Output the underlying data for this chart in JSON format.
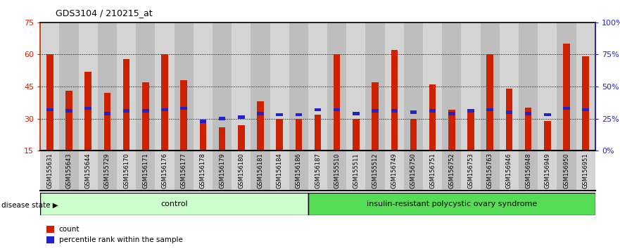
{
  "title": "GDS3104 / 210215_at",
  "samples": [
    "GSM155631",
    "GSM155643",
    "GSM155644",
    "GSM155729",
    "GSM156170",
    "GSM156171",
    "GSM156176",
    "GSM156177",
    "GSM156178",
    "GSM156179",
    "GSM156180",
    "GSM156181",
    "GSM156184",
    "GSM156186",
    "GSM156187",
    "GSM155510",
    "GSM155511",
    "GSM155512",
    "GSM156749",
    "GSM156750",
    "GSM156751",
    "GSM156752",
    "GSM156753",
    "GSM156763",
    "GSM156946",
    "GSM156948",
    "GSM156949",
    "GSM156950",
    "GSM156951"
  ],
  "count_values": [
    60,
    43,
    52,
    42,
    58,
    47,
    60,
    48,
    28,
    26,
    27,
    38,
    30,
    30,
    32,
    60,
    30,
    47,
    62,
    30,
    46,
    34,
    33,
    60,
    44,
    35,
    29,
    65,
    59
  ],
  "percentile_values": [
    32,
    31,
    33,
    29,
    31,
    31,
    32,
    33,
    23,
    25,
    26,
    29,
    28,
    28,
    32,
    32,
    29,
    31,
    31,
    30,
    31,
    29,
    31,
    32,
    30,
    29,
    28,
    33,
    32
  ],
  "control_count": 14,
  "disease_label": "insulin-resistant polycystic ovary syndrome",
  "control_label": "control",
  "disease_state_label": "disease state",
  "legend_count": "count",
  "legend_pct": "percentile rank within the sample",
  "ylim_left": [
    15,
    75
  ],
  "ylim_right": [
    0,
    100
  ],
  "yticks_left": [
    15,
    30,
    45,
    60,
    75
  ],
  "yticks_right": [
    0,
    25,
    50,
    75,
    100
  ],
  "ytick_labels_right": [
    "0%",
    "25%",
    "50%",
    "75%",
    "100%"
  ],
  "bar_color": "#cc2200",
  "pct_color": "#2222cc",
  "bg_color_even": "#d4d4d4",
  "bg_color_odd": "#bebebe",
  "control_bg": "#ccffcc",
  "disease_bg": "#55dd55",
  "grid_color": "#000000",
  "bar_width": 0.35
}
